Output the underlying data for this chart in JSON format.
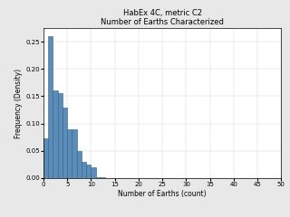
{
  "title_line1": "HabEx 4C, metric C2",
  "title_line2": "Number of Earths Characterized",
  "xlabel": "Number of Earths (count)",
  "ylabel": "Frequency (Density)",
  "bar_heights": [
    0.072,
    0.26,
    0.16,
    0.155,
    0.13,
    0.09,
    0.09,
    0.05,
    0.03,
    0.025,
    0.02,
    0.002,
    0.002
  ],
  "bar_left_edges": [
    0,
    1,
    2,
    3,
    4,
    5,
    6,
    7,
    8,
    9,
    10,
    11,
    12
  ],
  "bar_width": 1.0,
  "bar_facecolor": "#5b8db8",
  "bar_edgecolor": "#2b5f8a",
  "xlim": [
    0,
    50
  ],
  "ylim": [
    0,
    0.275
  ],
  "xticks": [
    0,
    5,
    10,
    15,
    20,
    25,
    30,
    35,
    40,
    45,
    50
  ],
  "yticks": [
    0,
    0.05,
    0.1,
    0.15,
    0.2,
    0.25
  ],
  "title_fontsize": 6,
  "axis_label_fontsize": 5.5,
  "tick_fontsize": 5,
  "background_color": "#e8e8e8",
  "axes_background": "#ffffff",
  "grid_color": "#d0d0d0"
}
